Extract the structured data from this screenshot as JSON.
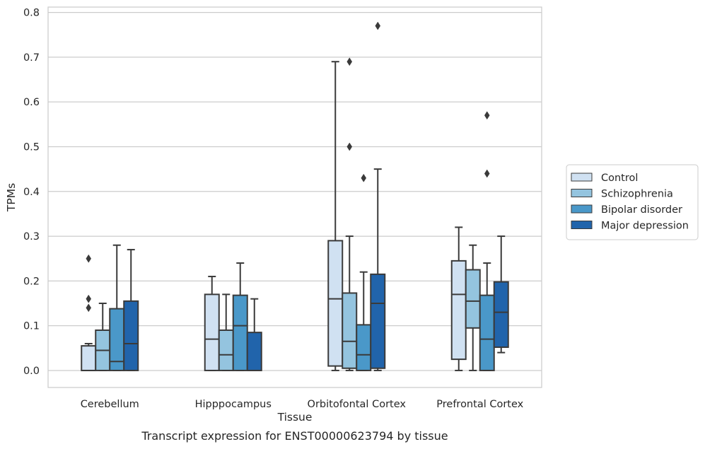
{
  "chart_data": {
    "type": "box",
    "caption": "Transcript expression for ENST00000623794 by tissue",
    "xlabel": "Tissue",
    "ylabel": "TPMs",
    "ylim": [
      -0.038,
      0.812
    ],
    "yticks": [
      0.0,
      0.1,
      0.2,
      0.3,
      0.4,
      0.5,
      0.6,
      0.7,
      0.8
    ],
    "ytick_labels": [
      "0.0",
      "0.1",
      "0.2",
      "0.3",
      "0.4",
      "0.5",
      "0.6",
      "0.7",
      "0.8"
    ],
    "grid": "horizontal",
    "legend_position": "outside-right",
    "categories": [
      "Cerebellum",
      "Hipppocampus",
      "Orbitofontal Cortex",
      "Prefrontal Cortex"
    ],
    "series": [
      {
        "name": "Control",
        "color": "#d0e1f2",
        "boxes": [
          {
            "whislo": 0.0,
            "q1": 0.0,
            "med": 0.0,
            "q3": 0.055,
            "whishi": 0.06,
            "fliers": [
              0.14,
              0.16,
              0.25
            ]
          },
          {
            "whislo": 0.0,
            "q1": 0.0,
            "med": 0.07,
            "q3": 0.17,
            "whishi": 0.21,
            "fliers": []
          },
          {
            "whislo": 0.0,
            "q1": 0.01,
            "med": 0.16,
            "q3": 0.29,
            "whishi": 0.69,
            "fliers": []
          },
          {
            "whislo": 0.0,
            "q1": 0.025,
            "med": 0.17,
            "q3": 0.245,
            "whishi": 0.32,
            "fliers": []
          }
        ]
      },
      {
        "name": "Schizophrenia",
        "color": "#94c4df",
        "boxes": [
          {
            "whislo": 0.0,
            "q1": 0.0,
            "med": 0.045,
            "q3": 0.09,
            "whishi": 0.15,
            "fliers": []
          },
          {
            "whislo": 0.0,
            "q1": 0.0,
            "med": 0.035,
            "q3": 0.09,
            "whishi": 0.17,
            "fliers": []
          },
          {
            "whislo": 0.0,
            "q1": 0.005,
            "med": 0.065,
            "q3": 0.173,
            "whishi": 0.3,
            "fliers": [
              0.5,
              0.69
            ]
          },
          {
            "whislo": 0.0,
            "q1": 0.095,
            "med": 0.155,
            "q3": 0.225,
            "whishi": 0.28,
            "fliers": []
          }
        ]
      },
      {
        "name": "Bipolar disorder",
        "color": "#4a98c9",
        "boxes": [
          {
            "whislo": 0.0,
            "q1": 0.0,
            "med": 0.02,
            "q3": 0.138,
            "whishi": 0.28,
            "fliers": []
          },
          {
            "whislo": 0.0,
            "q1": 0.0,
            "med": 0.1,
            "q3": 0.168,
            "whishi": 0.24,
            "fliers": []
          },
          {
            "whislo": 0.0,
            "q1": 0.0,
            "med": 0.035,
            "q3": 0.102,
            "whishi": 0.22,
            "fliers": [
              0.43
            ]
          },
          {
            "whislo": 0.0,
            "q1": 0.0,
            "med": 0.07,
            "q3": 0.168,
            "whishi": 0.24,
            "fliers": [
              0.44,
              0.57
            ]
          }
        ]
      },
      {
        "name": "Major depression",
        "color": "#2164ab",
        "boxes": [
          {
            "whislo": 0.0,
            "q1": 0.0,
            "med": 0.06,
            "q3": 0.155,
            "whishi": 0.27,
            "fliers": []
          },
          {
            "whislo": 0.0,
            "q1": 0.0,
            "med": 0.0,
            "q3": 0.085,
            "whishi": 0.16,
            "fliers": []
          },
          {
            "whislo": 0.0,
            "q1": 0.005,
            "med": 0.15,
            "q3": 0.215,
            "whishi": 0.45,
            "fliers": [
              0.77
            ]
          },
          {
            "whislo": 0.04,
            "q1": 0.052,
            "med": 0.13,
            "q3": 0.198,
            "whishi": 0.3,
            "fliers": []
          }
        ]
      }
    ]
  }
}
